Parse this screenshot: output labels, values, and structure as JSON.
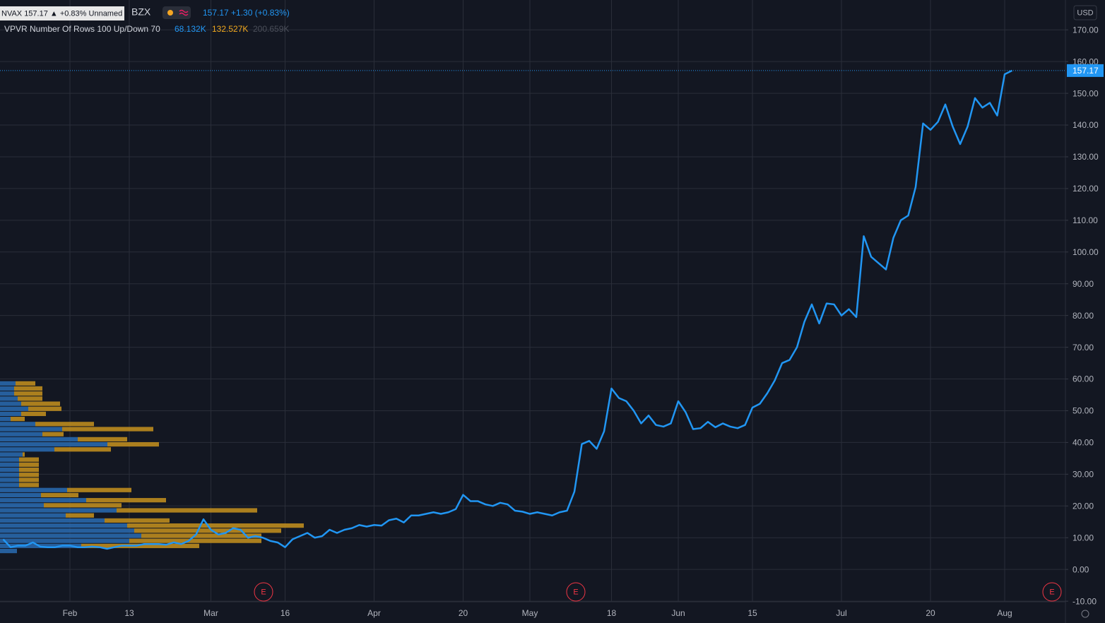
{
  "chart_data": {
    "type": "line",
    "header": {
      "symbol_badge": "NVAX 157.17 ▲ +0.83% Unnamed",
      "exchange": "BZX",
      "quote": "157.17 +1.30 (+0.83%)",
      "indicator": "VPVR Number Of Rows 100 Up/Down 70",
      "vol_up": "68.132K",
      "vol_down": "132.527K",
      "vol_total": "200.659K"
    },
    "currency": "USD",
    "earnings_markers": [
      "E",
      "E",
      "E"
    ],
    "categories": [
      null,
      null,
      null,
      null,
      null,
      null,
      null,
      null,
      null,
      "Feb",
      null,
      null,
      null,
      null,
      null,
      null,
      null,
      "13",
      null,
      null,
      null,
      null,
      null,
      null,
      null,
      null,
      null,
      null,
      "Mar",
      null,
      null,
      null,
      null,
      null,
      null,
      null,
      null,
      null,
      "16",
      null,
      null,
      null,
      null,
      null,
      null,
      null,
      null,
      null,
      null,
      null,
      "Apr",
      null,
      null,
      null,
      null,
      null,
      null,
      null,
      null,
      null,
      null,
      null,
      "20",
      null,
      null,
      null,
      null,
      null,
      null,
      null,
      null,
      "May",
      null,
      null,
      null,
      null,
      null,
      null,
      null,
      null,
      null,
      null,
      "18",
      null,
      null,
      null,
      null,
      null,
      null,
      null,
      null,
      "Jun",
      null,
      null,
      null,
      null,
      null,
      null,
      null,
      null,
      null,
      "15",
      null,
      null,
      null,
      null,
      null,
      null,
      null,
      null,
      null,
      null,
      null,
      "Jul",
      null,
      null,
      null,
      null,
      null,
      null,
      null,
      null,
      null,
      null,
      null,
      "20",
      null,
      null,
      null,
      null,
      null,
      null,
      null,
      null,
      null,
      "Aug",
      null
    ],
    "series": [
      {
        "color": "#2196f3",
        "values": [
          9.5,
          7,
          7.5,
          7.5,
          8.5,
          7.2,
          7,
          7,
          7.5,
          7.5,
          7,
          7,
          7.2,
          7,
          6.5,
          7,
          7.5,
          7.5,
          7.5,
          8,
          8,
          8,
          7.8,
          8.5,
          8,
          9,
          11,
          15.8,
          12.5,
          11,
          11.5,
          13,
          12.5,
          10,
          10.5,
          10,
          9,
          8.5,
          7,
          9.5,
          10.5,
          11.5,
          10,
          10.5,
          12.5,
          11.5,
          12.5,
          13,
          14,
          13.5,
          14,
          13.8,
          15.5,
          16,
          14.8,
          17,
          17,
          17.5,
          18,
          17.5,
          18,
          19,
          23.5,
          21.5,
          21.5,
          20.5,
          20,
          21,
          20.5,
          18.5,
          18.2,
          17.5,
          18,
          17.5,
          17,
          18,
          18.5,
          24.5,
          39.5,
          40.5,
          38,
          43.5,
          57,
          54,
          53,
          50,
          46,
          48.5,
          45.5,
          45,
          46,
          53,
          49.5,
          44.2,
          44.5,
          46.5,
          44.8,
          46,
          45,
          44.5,
          45.5,
          51,
          52.2,
          55.5,
          59.5,
          65,
          66,
          70,
          78,
          83.5,
          77.5,
          83.8,
          83.5,
          80,
          82,
          79.5,
          105,
          98.5,
          96.5,
          94.5,
          104.5,
          110,
          111.5,
          120.5,
          140.5,
          138.5,
          141,
          146.5,
          139.5,
          134,
          139.5,
          148.5,
          145.5,
          147,
          143,
          156,
          157.17
        ]
      }
    ],
    "last_price": {
      "value": 157.17,
      "label": "157.17"
    },
    "ylim": [
      -10.2,
      179.4
    ],
    "yticks": [
      {
        "value": -10,
        "label": "-10.00"
      },
      {
        "value": 0,
        "label": "0.00"
      },
      {
        "value": 10,
        "label": "10.00"
      },
      {
        "value": 20,
        "label": "20.00"
      },
      {
        "value": 30,
        "label": "30.00"
      },
      {
        "value": 40,
        "label": "40.00"
      },
      {
        "value": 50,
        "label": "50.00"
      },
      {
        "value": 60,
        "label": "60.00"
      },
      {
        "value": 70,
        "label": "70.00"
      },
      {
        "value": 80,
        "label": "80.00"
      },
      {
        "value": 90,
        "label": "90.00"
      },
      {
        "value": 100,
        "label": "100.00"
      },
      {
        "value": 110,
        "label": "110.00"
      },
      {
        "value": 120,
        "label": "120.00"
      },
      {
        "value": 130,
        "label": "130.00"
      },
      {
        "value": 140,
        "label": "140.00"
      },
      {
        "value": 150,
        "label": "150.00"
      },
      {
        "value": 160,
        "label": "160.00"
      },
      {
        "value": 170,
        "label": "170.00"
      }
    ],
    "grid": true,
    "volume_profile": {
      "up_color": "#2a6cb3",
      "down_color": "#c6921e",
      "bins": [
        4.9,
        6.5,
        8.1,
        9.7,
        11.3,
        12.9,
        14.5,
        16.1,
        17.7,
        19.3,
        20.9,
        22.5,
        24.1,
        25.7,
        27.3,
        28.9,
        30.5,
        32.1,
        33.7,
        35.3,
        36.9,
        38.5,
        40.1,
        41.7,
        43.3,
        44.9,
        46.5,
        48.1,
        49.7,
        51.3,
        52.9,
        54.5,
        56.1,
        57.7,
        59.3
      ],
      "up": [
        24,
        115,
        183,
        200,
        190,
        180,
        148,
        93,
        165,
        62,
        122,
        58,
        95,
        27,
        27,
        27,
        27,
        27,
        27,
        32,
        77,
        152,
        110,
        60,
        88,
        50,
        15,
        30,
        40,
        30,
        25,
        20,
        20,
        22
      ],
      "down": [
        0,
        167,
        187,
        170,
        208,
        250,
        92,
        40,
        199,
        110,
        113,
        53,
        91,
        28,
        28,
        28,
        28,
        28,
        28,
        3,
        80,
        73,
        70,
        30,
        129,
        83,
        20,
        35,
        47,
        55,
        35,
        40,
        40,
        28
      ]
    }
  }
}
